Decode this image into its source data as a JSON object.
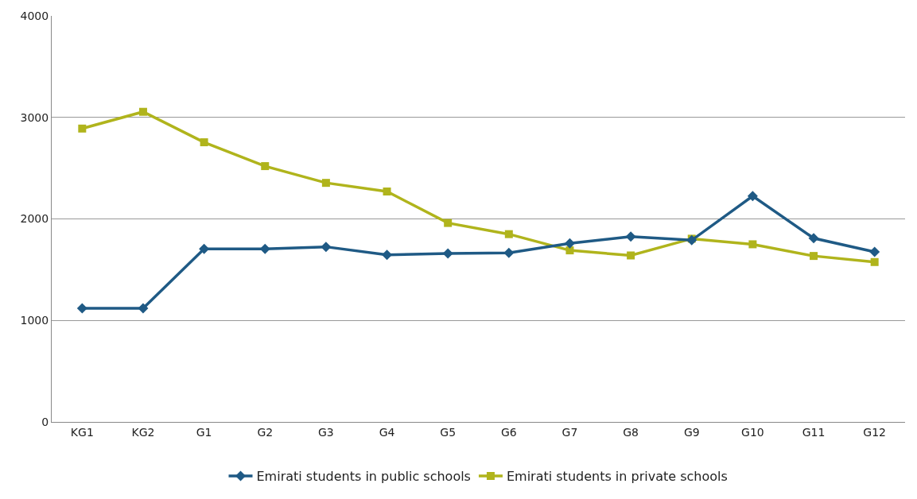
{
  "chart_data": {
    "type": "line",
    "categories": [
      "KG1",
      "KG2",
      "G1",
      "G2",
      "G3",
      "G4",
      "G5",
      "G6",
      "G7",
      "G8",
      "G9",
      "G10",
      "G11",
      "G12"
    ],
    "series": [
      {
        "name": "Emirati students in public schools",
        "color": "#1f5a85",
        "marker": "diamond",
        "values": [
          1120,
          1120,
          1705,
          1705,
          1725,
          1645,
          1660,
          1665,
          1760,
          1825,
          1790,
          2225,
          1810,
          1675
        ]
      },
      {
        "name": "Emirati students in private schools",
        "color": "#b0b41c",
        "marker": "square",
        "values": [
          2890,
          3055,
          2755,
          2520,
          2355,
          2270,
          1960,
          1850,
          1690,
          1640,
          1805,
          1750,
          1635,
          1575
        ]
      }
    ],
    "ylim": [
      0,
      4000
    ],
    "yticks": [
      0,
      1000,
      2000,
      3000,
      4000
    ],
    "grid": "y",
    "legend": "bottom",
    "line_style": "solid"
  }
}
